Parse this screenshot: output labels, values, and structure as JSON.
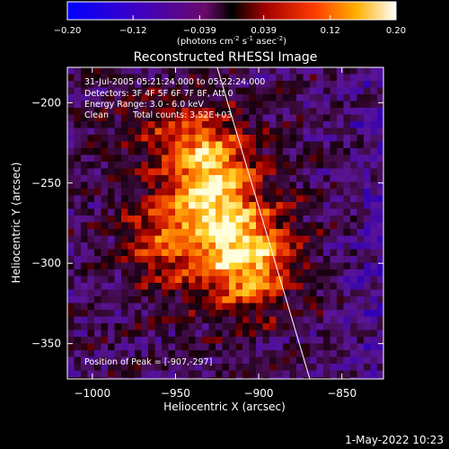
{
  "colorbar": {
    "tick_labels": [
      "−0.20",
      "−0.12",
      "−0.039",
      "0.039",
      "0.12",
      "0.20"
    ],
    "ticks": [
      -0.2,
      -0.12,
      -0.039,
      0.039,
      0.12,
      0.2
    ],
    "units_prefix": "(photons cm",
    "units_exp1": "-2",
    "units_mid": " s",
    "units_exp2": "-1",
    "units_mid2": " asec",
    "units_exp3": "-2",
    "units_suffix": ")"
  },
  "title": "Reconstructed RHESSI Image",
  "annotations": {
    "time": "31-Jul-2005 05:21:24.000 to 05:22:24.000",
    "detectors": "Detectors: 3F 4F 5F 6F 7F 8F, Att 0",
    "energy": "Energy Range: 3.0 - 6.0 keV",
    "clean_label": "Clean",
    "counts": "Total counts: 3.52E+03",
    "peak": "Position of Peak = [-907,-297]"
  },
  "axes": {
    "xlabel": "Heliocentric X (arcsec)",
    "ylabel": "Heliocentric Y (arcsec)",
    "x_ticks": [
      -1000,
      -950,
      -900,
      -850
    ],
    "x_tick_labels": [
      "−1000",
      "−950",
      "−900",
      "−850"
    ],
    "y_ticks": [
      -200,
      -250,
      -300,
      -350
    ],
    "y_tick_labels": [
      "−200",
      "−250",
      "−300",
      "−350"
    ],
    "xlim": [
      -1015,
      -825
    ],
    "ylim": [
      -372,
      -178
    ]
  },
  "footer": {
    "date": "1-May-2022 10:23"
  },
  "colors": {
    "background": "#000000",
    "text": "#ffffff"
  }
}
